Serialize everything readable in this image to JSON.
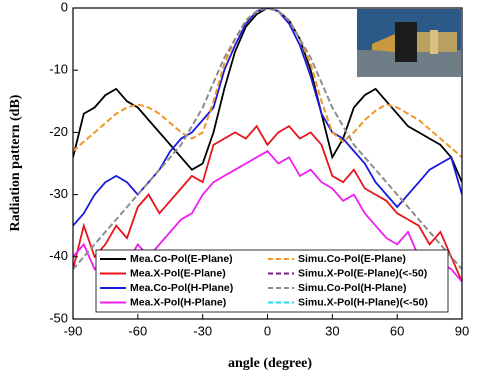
{
  "chart_data": {
    "type": "line",
    "xlabel": "angle (degree)",
    "ylabel": "Radiation pattern (dB)",
    "xlim": [
      -90,
      90
    ],
    "xticks": [
      -90,
      -60,
      -30,
      0,
      30,
      60,
      90
    ],
    "ylim": [
      -50,
      0
    ],
    "yticks": [
      -50,
      -40,
      -30,
      -20,
      -10,
      0
    ],
    "legend": "lower center",
    "x": [
      -90,
      -85,
      -80,
      -75,
      -70,
      -65,
      -60,
      -55,
      -50,
      -45,
      -40,
      -35,
      -30,
      -25,
      -20,
      -15,
      -10,
      -5,
      0,
      5,
      10,
      15,
      20,
      25,
      30,
      35,
      40,
      45,
      50,
      55,
      60,
      65,
      70,
      75,
      80,
      85,
      90
    ],
    "series": [
      {
        "name": "Mea.Co-Pol(E-Plane)",
        "color": "#000000",
        "dashed": false,
        "values": [
          -24,
          -17,
          -16,
          -14,
          -13,
          -15,
          -16,
          -18,
          -20,
          -22,
          -24,
          -26,
          -25,
          -20,
          -13,
          -7,
          -3,
          -1,
          0,
          -0.5,
          -2,
          -5,
          -10,
          -17,
          -24,
          -21,
          -16,
          -14,
          -13,
          -15,
          -17,
          -19,
          -20,
          -21,
          -22,
          -24,
          -28
        ]
      },
      {
        "name": "Mea.X-Pol(E-Plane)",
        "color": "#e8141c",
        "dashed": false,
        "values": [
          -42,
          -35,
          -40,
          -38,
          -35,
          -37,
          -32,
          -30,
          -33,
          -31,
          -29,
          -27,
          -28,
          -22,
          -21,
          -20,
          -21,
          -19,
          -22,
          -20,
          -19,
          -21,
          -20,
          -22,
          -27,
          -28,
          -26,
          -29,
          -30,
          -31,
          -33,
          -34,
          -35,
          -38,
          -36,
          -40,
          -44
        ]
      },
      {
        "name": "Mea.Co-Pol(H-Plane)",
        "color": "#1a1adc",
        "dashed": false,
        "values": [
          -35,
          -33,
          -30,
          -28,
          -27,
          -28,
          -30,
          -28,
          -26,
          -23,
          -21,
          -20,
          -18,
          -16,
          -10,
          -6,
          -2.5,
          -0.5,
          0,
          -0.5,
          -2.5,
          -6,
          -11,
          -17,
          -20,
          -21,
          -23,
          -25,
          -28,
          -30,
          -32,
          -30,
          -28,
          -26,
          -25,
          -24,
          -30
        ]
      },
      {
        "name": "Mea.X-Pol(H-Plane)",
        "color": "#f01ef0",
        "dashed": false,
        "values": [
          -40,
          -38,
          -42,
          -40,
          -39,
          -41,
          -38,
          -40,
          -38,
          -36,
          -34,
          -33,
          -30,
          -28,
          -27,
          -26,
          -25,
          -24,
          -23,
          -25,
          -24,
          -27,
          -26,
          -28,
          -29,
          -31,
          -30,
          -33,
          -35,
          -37,
          -38,
          -36,
          -40,
          -39,
          -41,
          -42,
          -44
        ]
      },
      {
        "name": "Simu.Co-Pol(E-Plane)",
        "color": "#f0962a",
        "dashed": true,
        "values": [
          -23,
          -21.5,
          -20,
          -18.5,
          -17,
          -16,
          -15.5,
          -16,
          -17,
          -18.5,
          -20,
          -21,
          -20,
          -15,
          -9,
          -5,
          -2,
          -0.5,
          0,
          -0.5,
          -2,
          -5,
          -9,
          -15,
          -20,
          -21.5,
          -20,
          -18,
          -16.5,
          -15.5,
          -16,
          -17,
          -18,
          -19.5,
          -21,
          -22.5,
          -24
        ]
      },
      {
        "name": "Simu.X-Pol(E-Plane)(<-50)",
        "color": "#7a1a8c",
        "dashed": true,
        "values": [
          null,
          null,
          null,
          null,
          null,
          null,
          null,
          null,
          null,
          null,
          null,
          null,
          null,
          null,
          null,
          null,
          null,
          null,
          null,
          null,
          null,
          null,
          null,
          null,
          null,
          null,
          null,
          null,
          null,
          null,
          null,
          null,
          null,
          null,
          null,
          null,
          null
        ]
      },
      {
        "name": "Simu.Co-Pol(H-Plane)",
        "color": "#8c8c8c",
        "dashed": true,
        "values": [
          -42,
          -40,
          -38,
          -36,
          -34,
          -32,
          -30,
          -28,
          -26,
          -24,
          -22,
          -19,
          -16,
          -12,
          -8,
          -5,
          -2,
          -0.5,
          0,
          -0.5,
          -2,
          -5,
          -8,
          -12,
          -16,
          -19,
          -22,
          -24,
          -26,
          -28,
          -30,
          -32,
          -34,
          -36,
          -38,
          -40,
          -42
        ]
      },
      {
        "name": "Simu.X-Pol(H-Plane)(<-50)",
        "color": "#22d8e8",
        "dashed": true,
        "values": [
          null,
          null,
          null,
          null,
          null,
          null,
          null,
          null,
          null,
          null,
          null,
          null,
          null,
          null,
          null,
          null,
          null,
          null,
          null,
          null,
          null,
          null,
          null,
          null,
          null,
          null,
          null,
          null,
          null,
          null,
          null,
          null,
          null,
          null,
          null,
          null,
          null
        ]
      }
    ]
  }
}
